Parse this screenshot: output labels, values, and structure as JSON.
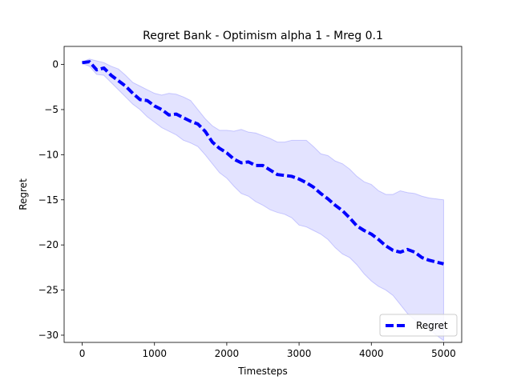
{
  "chart_data": {
    "type": "line",
    "title": "Regret Bank - Optimism alpha 1 - Mreg 0.1",
    "xlabel": "Timesteps",
    "ylabel": "Regret",
    "xlim": [
      -250,
      5250
    ],
    "ylim": [
      -30.8,
      2.0
    ],
    "xticks": [
      0,
      1000,
      2000,
      3000,
      4000,
      5000
    ],
    "yticks": [
      0,
      -5,
      -10,
      -15,
      -20,
      -25,
      -30
    ],
    "grid": false,
    "legend_position": "lower right",
    "series": [
      {
        "name": "Regret",
        "color": "#0000ff",
        "style": "dashed",
        "x": [
          0,
          100,
          200,
          300,
          400,
          500,
          600,
          700,
          800,
          900,
          1000,
          1100,
          1200,
          1300,
          1400,
          1500,
          1600,
          1700,
          1800,
          1900,
          2000,
          2100,
          2200,
          2300,
          2400,
          2500,
          2600,
          2700,
          2800,
          2900,
          3000,
          3100,
          3200,
          3300,
          3400,
          3500,
          3600,
          3700,
          3800,
          3900,
          4000,
          4100,
          4200,
          4300,
          4400,
          4500,
          4600,
          4700,
          4800,
          4900,
          5000
        ],
        "y": [
          0.2,
          0.3,
          -0.6,
          -0.4,
          -1.2,
          -1.8,
          -2.4,
          -3.2,
          -3.9,
          -4.0,
          -4.6,
          -5.0,
          -5.6,
          -5.5,
          -5.9,
          -6.3,
          -6.6,
          -7.4,
          -8.6,
          -9.3,
          -9.8,
          -10.5,
          -10.9,
          -10.8,
          -11.2,
          -11.2,
          -11.7,
          -12.2,
          -12.3,
          -12.4,
          -12.7,
          -13.1,
          -13.6,
          -14.3,
          -14.9,
          -15.6,
          -16.2,
          -17.0,
          -17.9,
          -18.4,
          -18.8,
          -19.4,
          -20.1,
          -20.6,
          -20.8,
          -20.5,
          -20.8,
          -21.4,
          -21.7,
          -21.9,
          -22.1
        ]
      }
    ],
    "band": {
      "color": "#0000ff",
      "x": [
        0,
        100,
        200,
        300,
        400,
        500,
        600,
        700,
        800,
        900,
        1000,
        1100,
        1200,
        1300,
        1400,
        1500,
        1600,
        1700,
        1800,
        1900,
        2000,
        2100,
        2200,
        2300,
        2400,
        2500,
        2600,
        2700,
        2800,
        2900,
        3000,
        3100,
        3200,
        3300,
        3400,
        3500,
        3600,
        3700,
        3800,
        3900,
        4000,
        4100,
        4200,
        4300,
        4400,
        4500,
        4600,
        4700,
        4800,
        4900,
        5000
      ],
      "upper": [
        0.3,
        0.6,
        0.4,
        0.2,
        -0.2,
        -0.5,
        -1.2,
        -2.0,
        -2.4,
        -2.8,
        -3.2,
        -3.4,
        -3.2,
        -3.3,
        -3.6,
        -4.0,
        -5.0,
        -6.0,
        -6.8,
        -7.3,
        -7.3,
        -7.4,
        -7.2,
        -7.5,
        -7.6,
        -7.9,
        -8.2,
        -8.6,
        -8.6,
        -8.4,
        -8.4,
        -8.4,
        -9.1,
        -9.9,
        -10.1,
        -10.7,
        -11.0,
        -11.6,
        -12.4,
        -13.0,
        -13.3,
        -14.0,
        -14.4,
        -14.4,
        -14.0,
        -14.2,
        -14.3,
        -14.6,
        -14.8,
        -14.9,
        -15.0
      ],
      "lower": [
        0.1,
        -0.2,
        -1.1,
        -1.2,
        -2.0,
        -2.8,
        -3.6,
        -4.4,
        -5.0,
        -5.8,
        -6.4,
        -7.0,
        -7.4,
        -7.8,
        -8.4,
        -8.7,
        -9.1,
        -10.0,
        -11.0,
        -12.0,
        -12.6,
        -13.5,
        -14.3,
        -14.6,
        -15.2,
        -15.6,
        -16.1,
        -16.4,
        -16.6,
        -17.0,
        -17.8,
        -18.0,
        -18.4,
        -18.8,
        -19.4,
        -20.3,
        -21.0,
        -21.4,
        -22.2,
        -23.2,
        -24.0,
        -24.6,
        -25.0,
        -25.6,
        -26.6,
        -27.6,
        -28.3,
        -28.8,
        -29.3,
        -30.0,
        -30.6
      ]
    }
  }
}
